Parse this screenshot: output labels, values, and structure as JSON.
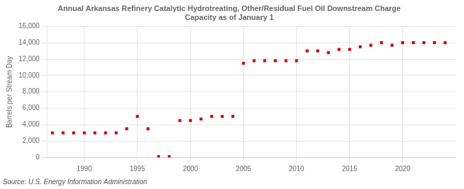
{
  "chart_data": {
    "type": "scatter",
    "title": "Annual Arkansas Refinery Catalytic Hydrotreating, Other/Residual Fuel Oil Downstream Charge\nCapacity as of January 1",
    "ylabel": "Barrels per Stream Day",
    "annotations": [
      "Source: U.S. Energy Information Administration"
    ],
    "x": [
      1987,
      1988,
      1989,
      1990,
      1991,
      1992,
      1993,
      1994,
      1995,
      1996,
      1997,
      1998,
      1999,
      2000,
      2001,
      2002,
      2003,
      2004,
      2005,
      2006,
      2007,
      2008,
      2009,
      2010,
      2011,
      2012,
      2013,
      2014,
      2015,
      2016,
      2017,
      2018,
      2019,
      2020,
      2021,
      2022,
      2023,
      2024
    ],
    "values": [
      3000,
      3000,
      3000,
      3000,
      3000,
      3000,
      3000,
      3500,
      5000,
      3500,
      100,
      100,
      4500,
      4500,
      4700,
      5000,
      5000,
      5000,
      11500,
      11800,
      11800,
      11800,
      11800,
      11800,
      13000,
      13000,
      12800,
      13200,
      13200,
      13500,
      13700,
      14000,
      13700,
      14000,
      14000,
      14000,
      14000,
      14000
    ],
    "color": "#cc0000",
    "marker": "square",
    "xlim": [
      1986.5,
      2025
    ],
    "xticks": [
      1990,
      1995,
      2000,
      2005,
      2010,
      2015,
      2020
    ],
    "ylim": [
      0,
      16000
    ],
    "yticks": [
      0,
      {
        "value": 2000,
        "label": "2,000"
      },
      {
        "value": 4000,
        "label": "4,000"
      },
      {
        "value": 6000,
        "label": "6,000"
      },
      {
        "value": 8000,
        "label": "8,000"
      },
      {
        "value": 10000,
        "label": "10,000"
      },
      {
        "value": 12000,
        "label": "12,000"
      },
      {
        "value": 14000,
        "label": "14,000"
      },
      {
        "value": 16000,
        "label": "16,000"
      }
    ],
    "grid": true
  }
}
